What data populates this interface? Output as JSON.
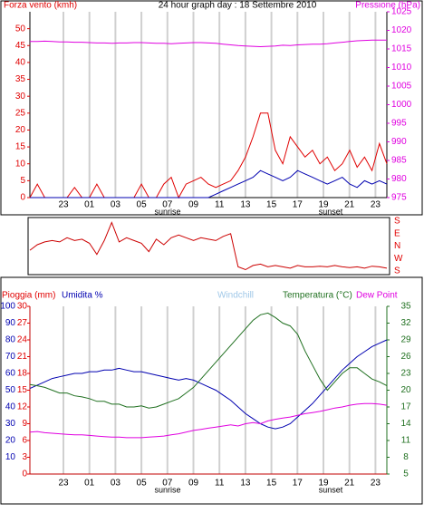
{
  "chart_data": [
    {
      "type": "line",
      "title": "24 hour graph day : 18 Settembre 2010",
      "y_label": "Forza vento (kmh)",
      "y2_label": "Pressione (hPa)",
      "x_labels": [
        "23",
        "01",
        "03",
        "05",
        "07",
        "09",
        "11",
        "13",
        "15",
        "17",
        "19",
        "21",
        "23"
      ],
      "annotations": [
        "sunrise",
        "sunset"
      ],
      "ylim": [
        0,
        55
      ],
      "yticks": [
        0,
        5,
        10,
        15,
        20,
        25,
        30,
        35,
        40,
        45,
        50
      ],
      "y2lim": [
        975,
        1025
      ],
      "y2ticks": [
        975,
        980,
        985,
        990,
        995,
        1000,
        1005,
        1010,
        1015,
        1020,
        1025
      ],
      "grid": true,
      "series": [
        {
          "color": "#e00000",
          "values": [
            0,
            4,
            0,
            0,
            0,
            0,
            3,
            0,
            0,
            4,
            0,
            0,
            0,
            0,
            0,
            4,
            0,
            0,
            4,
            6,
            0,
            4,
            5,
            6,
            4,
            3,
            4,
            5,
            8,
            12,
            18,
            25,
            25,
            14,
            10,
            18,
            15,
            12,
            14,
            10,
            12,
            8,
            10,
            14,
            9,
            12,
            8,
            16,
            10
          ]
        },
        {
          "color": "#0000b0",
          "values": [
            0,
            0,
            0,
            0,
            0,
            0,
            0,
            0,
            0,
            0,
            0,
            0,
            0,
            0,
            0,
            0,
            0,
            0,
            0,
            0,
            0,
            0,
            0,
            0,
            0,
            1,
            2,
            3,
            4,
            5,
            6,
            8,
            7,
            6,
            5,
            6,
            8,
            7,
            6,
            5,
            4,
            5,
            6,
            4,
            3,
            5,
            4,
            5,
            4
          ]
        },
        {
          "color": "#e000e0",
          "axis": "y2",
          "values": [
            1017.0,
            1017.0,
            1017.1,
            1017.0,
            1016.9,
            1016.9,
            1016.8,
            1016.8,
            1016.7,
            1016.6,
            1016.6,
            1016.5,
            1016.6,
            1016.6,
            1016.7,
            1016.7,
            1016.6,
            1016.5,
            1016.5,
            1016.4,
            1016.5,
            1016.6,
            1016.7,
            1016.7,
            1016.6,
            1016.5,
            1016.3,
            1016.1,
            1015.9,
            1015.8,
            1015.7,
            1015.6,
            1015.7,
            1015.8,
            1016.0,
            1015.9,
            1016.1,
            1016.2,
            1016.3,
            1016.3,
            1016.4,
            1016.6,
            1016.8,
            1017.0,
            1017.2,
            1017.3,
            1017.4,
            1017.4,
            1017.4
          ]
        }
      ]
    },
    {
      "type": "line",
      "ylim": [
        -180,
        180
      ],
      "yticks": [
        {
          "value": 180,
          "label": "S"
        },
        {
          "value": 90,
          "label": "E"
        },
        {
          "value": 0,
          "label": "N"
        },
        {
          "value": -90,
          "label": "W"
        },
        {
          "value": -180,
          "label": "S"
        }
      ],
      "series": [
        {
          "color": "#cc0000",
          "values": [
            -30,
            10,
            30,
            40,
            30,
            60,
            40,
            50,
            20,
            -60,
            40,
            170,
            30,
            60,
            40,
            20,
            -40,
            50,
            10,
            60,
            80,
            60,
            40,
            60,
            50,
            40,
            70,
            90,
            -150,
            -170,
            -140,
            -130,
            -150,
            -140,
            -150,
            -160,
            -140,
            -150,
            -150,
            -145,
            -150,
            -140,
            -150,
            -155,
            -150,
            -160,
            -145,
            -150,
            -160
          ]
        }
      ]
    },
    {
      "type": "line",
      "y_label": "Pioggia (mm)",
      "x_labels": [
        "23",
        "01",
        "03",
        "05",
        "07",
        "09",
        "11",
        "13",
        "15",
        "17",
        "19",
        "21",
        "23"
      ],
      "annotations": [
        "sunrise",
        "sunset"
      ],
      "ylim": [
        0,
        30
      ],
      "yticks": [
        0,
        3,
        6,
        9,
        12,
        15,
        18,
        21,
        24,
        27,
        30
      ],
      "y3lim": [
        0,
        100
      ],
      "y3ticks": [
        10,
        20,
        30,
        40,
        50,
        60,
        70,
        80,
        90,
        100
      ],
      "y2lim": [
        5,
        35
      ],
      "y2ticks": [
        5,
        8,
        11,
        14,
        17,
        20,
        23,
        26,
        29,
        32,
        35
      ],
      "series": [
        {
          "name": "Umidita %",
          "color": "#0000b0",
          "axis": "y3",
          "values": [
            51,
            53,
            55,
            57,
            58,
            59,
            60,
            60,
            61,
            61,
            62,
            62,
            63,
            62,
            61,
            61,
            60,
            59,
            58,
            57,
            56,
            57,
            56,
            54,
            52,
            50,
            47,
            44,
            40,
            36,
            33,
            30,
            28,
            27,
            28,
            30,
            34,
            38,
            42,
            47,
            52,
            57,
            62,
            66,
            70,
            73,
            76,
            78,
            80
          ]
        },
        {
          "name": "Windchill",
          "color": "#a0c8e8",
          "axis": "y2",
          "values": [
            null,
            null,
            null,
            null,
            null,
            null,
            null,
            null,
            null,
            null,
            null,
            null,
            null,
            null,
            null,
            null,
            null,
            null,
            null,
            null,
            null,
            null,
            null,
            null,
            null,
            null,
            null,
            null,
            null,
            null,
            null,
            null,
            null,
            null,
            null,
            null,
            null,
            null,
            null,
            null,
            null,
            null,
            null,
            null,
            null,
            null,
            null,
            null,
            null
          ]
        },
        {
          "name": "Temperatura (°C)",
          "color": "#207020",
          "axis": "y2",
          "values": [
            21,
            20.8,
            20.5,
            20,
            19.5,
            19.5,
            19,
            18.8,
            18.5,
            18,
            18,
            17.5,
            17.5,
            17,
            17,
            17.2,
            16.8,
            17,
            17.5,
            18,
            18.5,
            19.5,
            20.5,
            22,
            23.5,
            25,
            26.5,
            28,
            29.5,
            31,
            32.5,
            33.5,
            33.8,
            33,
            32,
            31.5,
            30,
            27,
            24.5,
            22,
            20,
            21.5,
            23,
            24,
            24,
            23,
            22,
            21.5,
            20.8
          ]
        },
        {
          "name": "Dew Point",
          "color": "#e000e0",
          "axis": "y2",
          "values": [
            12.5,
            12.6,
            12.4,
            12.3,
            12.2,
            12.1,
            12,
            12,
            11.9,
            11.8,
            11.7,
            11.6,
            11.6,
            11.5,
            11.5,
            11.5,
            11.6,
            11.7,
            11.8,
            12,
            12.2,
            12.5,
            12.8,
            13,
            13.2,
            13.4,
            13.6,
            13.8,
            13.6,
            14,
            14.2,
            14,
            14.5,
            14.8,
            15,
            15.2,
            15.5,
            15.8,
            16,
            16.2,
            16.5,
            16.8,
            17,
            17.3,
            17.5,
            17.6,
            17.6,
            17.5,
            17.3
          ]
        }
      ]
    }
  ]
}
